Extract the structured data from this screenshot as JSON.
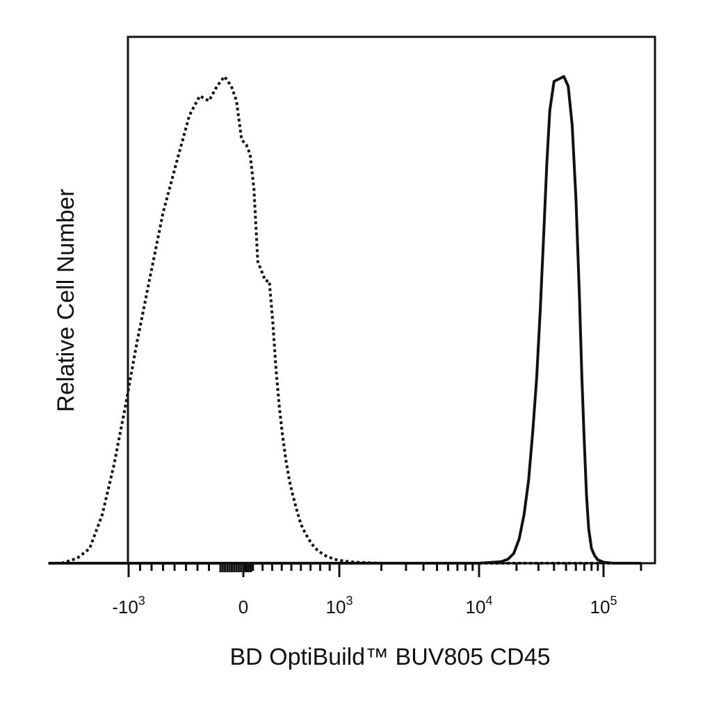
{
  "chart_data": {
    "type": "line",
    "title": "",
    "xlabel": "BD OptiBuild™ BUV805 CD45",
    "ylabel": "Relative Cell Number",
    "x_scale": "biexponential (logicle)",
    "xlim": [
      -1700,
      200000
    ],
    "ylim": [
      0,
      1
    ],
    "grid": false,
    "legend": "none",
    "x_tick_labels": [
      {
        "value": -1000,
        "base": "-10",
        "exp": "3"
      },
      {
        "value": 0,
        "base": "0",
        "exp": ""
      },
      {
        "value": 1000,
        "base": "10",
        "exp": "3"
      },
      {
        "value": 10000,
        "base": "10",
        "exp": "4"
      },
      {
        "value": 100000,
        "base": "10",
        "exp": "5"
      }
    ],
    "series": [
      {
        "style": "dotted",
        "color": "#111111",
        "x": [
          -1585,
          -1450,
          -1340,
          -1230,
          -1130,
          -1030,
          -930,
          -820,
          -700,
          -575,
          -470,
          -380,
          -300,
          -230,
          -165,
          -105,
          -60,
          -15,
          30,
          70,
          110,
          150,
          190,
          230,
          270,
          305,
          340,
          375,
          410,
          445,
          480,
          515,
          555,
          600,
          650,
          710,
          780,
          860,
          950,
          1100,
          1300,
          1600,
          2000,
          3000,
          5000,
          7000,
          10000,
          20000,
          40000,
          80000,
          200000
        ],
        "y": [
          0.0,
          0.01,
          0.03,
          0.1,
          0.2,
          0.32,
          0.45,
          0.58,
          0.72,
          0.83,
          0.92,
          0.96,
          0.95,
          0.98,
          1.0,
          0.98,
          0.95,
          0.87,
          0.86,
          0.84,
          0.77,
          0.62,
          0.6,
          0.58,
          0.58,
          0.5,
          0.4,
          0.32,
          0.26,
          0.21,
          0.17,
          0.14,
          0.11,
          0.08,
          0.06,
          0.04,
          0.025,
          0.015,
          0.008,
          0.004,
          0.002,
          0.001,
          0.0,
          0.0,
          0.0,
          0.0,
          0.0,
          0.0,
          0.0,
          0.0,
          0.0
        ]
      },
      {
        "style": "solid",
        "color": "#111111",
        "x": [
          -1700,
          0,
          1000,
          5000,
          10000,
          15000,
          17000,
          19000,
          21000,
          23000,
          25000,
          27000,
          29000,
          31000,
          33000,
          35000,
          37000,
          40000,
          44000,
          48000,
          52000,
          56000,
          60000,
          64000,
          67000,
          70000,
          73000,
          76000,
          80000,
          85000,
          90000,
          100000,
          120000,
          150000,
          200000
        ],
        "y": [
          0.0,
          0.0,
          0.0,
          0.0,
          0.0,
          0.003,
          0.008,
          0.02,
          0.05,
          0.1,
          0.17,
          0.27,
          0.38,
          0.52,
          0.67,
          0.82,
          0.93,
          0.99,
          0.995,
          1.0,
          0.98,
          0.9,
          0.75,
          0.55,
          0.38,
          0.25,
          0.14,
          0.07,
          0.03,
          0.015,
          0.007,
          0.002,
          0.0,
          0.0,
          0.0
        ]
      }
    ]
  }
}
